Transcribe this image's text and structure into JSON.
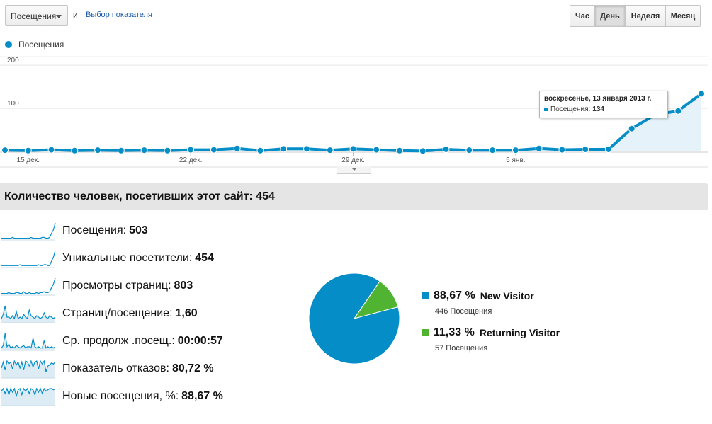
{
  "controls": {
    "metric_select": "Посещения",
    "and_text": "и",
    "choose_metric_link": "Выбор показателя",
    "periods": [
      {
        "label": "Час",
        "active": false
      },
      {
        "label": "День",
        "active": true
      },
      {
        "label": "Неделя",
        "active": false
      },
      {
        "label": "Месяц",
        "active": false
      }
    ]
  },
  "legend": {
    "label": "Посещения",
    "color": "#058dc7"
  },
  "chart_data": {
    "type": "area",
    "series": [
      {
        "name": "Посещения",
        "color": "#058dc7",
        "values": [
          3,
          2,
          4,
          2,
          3,
          2,
          3,
          2,
          4,
          4,
          7,
          2,
          6,
          6,
          3,
          6,
          4,
          2,
          1,
          5,
          3,
          3,
          3,
          7,
          4,
          5,
          5,
          53,
          85,
          94,
          134
        ]
      }
    ],
    "yticks": [
      100,
      200
    ],
    "ylim": [
      0,
      220
    ],
    "xtick_labels": [
      {
        "label": "15 дек.",
        "index": 1
      },
      {
        "label": "22 дек.",
        "index": 8
      },
      {
        "label": "29 дек.",
        "index": 15
      },
      {
        "label": "5 янв.",
        "index": 22
      }
    ],
    "grid": true
  },
  "tooltip": {
    "date": "воскресенье, 13 января 2013 г.",
    "series_label": "Посещения:",
    "value": "134"
  },
  "summary": {
    "title": "Количество человек, посетивших этот сайт: 454"
  },
  "metrics": [
    {
      "label": "Посещения:",
      "value": "503",
      "spark": [
        2,
        2,
        2,
        2,
        2,
        2,
        3,
        2,
        2,
        2,
        2,
        2,
        2,
        2,
        2,
        2,
        3,
        2,
        2,
        2,
        2,
        2,
        3,
        3,
        2,
        2,
        3,
        8,
        12,
        20
      ],
      "fill": false
    },
    {
      "label": "Уникальные посетители:",
      "value": "454",
      "spark": [
        2,
        2,
        2,
        2,
        2,
        2,
        2,
        2,
        2,
        2,
        3,
        2,
        2,
        2,
        2,
        2,
        2,
        2,
        2,
        2,
        3,
        2,
        2,
        3,
        3,
        2,
        2,
        7,
        11,
        18
      ],
      "fill": false
    },
    {
      "label": "Просмотры страниц:",
      "value": "803",
      "spark": [
        2,
        2,
        2,
        2,
        3,
        2,
        2,
        2,
        3,
        3,
        2,
        2,
        4,
        2,
        2,
        3,
        2,
        2,
        2,
        3,
        2,
        3,
        3,
        4,
        3,
        3,
        4,
        9,
        13,
        20
      ],
      "fill": false
    },
    {
      "label": "Страниц/посещение:",
      "value": "1,60",
      "spark": [
        3,
        6,
        12,
        4,
        4,
        3,
        5,
        3,
        8,
        3,
        4,
        3,
        6,
        4,
        3,
        9,
        5,
        4,
        3,
        5,
        4,
        3,
        4,
        7,
        4,
        3,
        5,
        4,
        3,
        4
      ],
      "fill": true
    },
    {
      "label": "Ср. продолж .посещ.:",
      "value": "00:00:57",
      "spark": [
        2,
        4,
        14,
        3,
        5,
        2,
        3,
        2,
        4,
        3,
        2,
        3,
        4,
        2,
        3,
        3,
        2,
        10,
        3,
        2,
        3,
        2,
        2,
        8,
        2,
        3,
        2,
        3,
        2,
        3
      ],
      "fill": true
    },
    {
      "label": "Показатель отказов:",
      "value": "80,72 %",
      "spark": [
        10,
        16,
        8,
        17,
        14,
        16,
        9,
        17,
        13,
        16,
        10,
        16,
        8,
        17,
        16,
        12,
        17,
        11,
        16,
        17,
        9,
        17,
        14,
        17,
        6,
        12,
        13,
        15,
        14,
        16
      ],
      "fill": true
    },
    {
      "label": "Новые посещения, %:",
      "value": "88,67 %",
      "spark": [
        12,
        14,
        10,
        14,
        9,
        14,
        11,
        14,
        8,
        13,
        14,
        9,
        14,
        12,
        14,
        10,
        14,
        13,
        9,
        14,
        11,
        14,
        10,
        14,
        12,
        13,
        14,
        14,
        13,
        14
      ],
      "fill": true
    }
  ],
  "pie": {
    "slices": [
      {
        "label": "New Visitor",
        "percent_text": "88,67 %",
        "value": 88.67,
        "count_text": "446 Посещения",
        "color": "#058dc7"
      },
      {
        "label": "Returning Visitor",
        "percent_text": "11,33 %",
        "value": 11.33,
        "count_text": "57 Посещения",
        "color": "#50b432"
      }
    ]
  }
}
